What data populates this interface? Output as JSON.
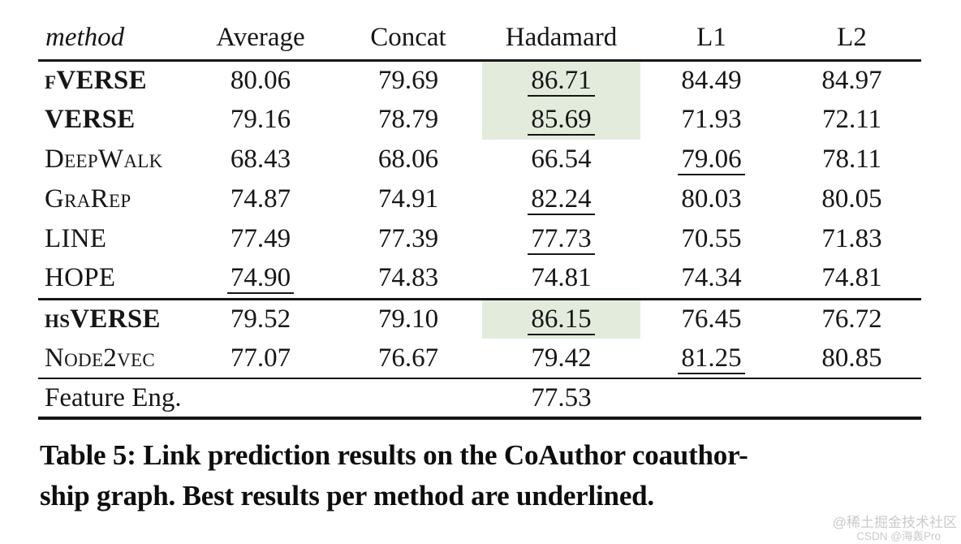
{
  "colors": {
    "highlight_green": "#e3ecdc",
    "text": "#161616",
    "rule": "#161616",
    "watermark_gray": "#c9cbc8"
  },
  "table": {
    "columns": [
      "method",
      "Average",
      "Concat",
      "Hadamard",
      "L1",
      "L2"
    ],
    "rows": [
      {
        "method": "fVERSE",
        "bold": true,
        "smallcaps": true,
        "group": 1,
        "cells": [
          {
            "value": "80.06"
          },
          {
            "value": "79.69"
          },
          {
            "value": "86.71",
            "underline": true,
            "highlight": true
          },
          {
            "value": "84.49"
          },
          {
            "value": "84.97"
          }
        ]
      },
      {
        "method": "VERSE",
        "bold": true,
        "smallcaps": true,
        "group": 1,
        "cells": [
          {
            "value": "79.16"
          },
          {
            "value": "78.79"
          },
          {
            "value": "85.69",
            "underline": true,
            "highlight": true
          },
          {
            "value": "71.93"
          },
          {
            "value": "72.11"
          }
        ]
      },
      {
        "method": "DeepWalk",
        "bold": false,
        "smallcaps": true,
        "group": 1,
        "cells": [
          {
            "value": "68.43"
          },
          {
            "value": "68.06"
          },
          {
            "value": "66.54"
          },
          {
            "value": "79.06",
            "underline": true
          },
          {
            "value": "78.11"
          }
        ]
      },
      {
        "method": "GraRep",
        "bold": false,
        "smallcaps": true,
        "group": 1,
        "cells": [
          {
            "value": "74.87"
          },
          {
            "value": "74.91"
          },
          {
            "value": "82.24",
            "underline": true
          },
          {
            "value": "80.03"
          },
          {
            "value": "80.05"
          }
        ]
      },
      {
        "method": "LINE",
        "bold": false,
        "smallcaps": true,
        "group": 1,
        "cells": [
          {
            "value": "77.49"
          },
          {
            "value": "77.39"
          },
          {
            "value": "77.73",
            "underline": true
          },
          {
            "value": "70.55"
          },
          {
            "value": "71.83"
          }
        ]
      },
      {
        "method": "HOPE",
        "bold": false,
        "smallcaps": true,
        "group": 1,
        "cells": [
          {
            "value": "74.90",
            "underline": true
          },
          {
            "value": "74.83"
          },
          {
            "value": "74.81"
          },
          {
            "value": "74.34"
          },
          {
            "value": "74.81"
          }
        ]
      },
      {
        "method": "hsVERSE",
        "bold": true,
        "smallcaps": true,
        "group": 2,
        "cells": [
          {
            "value": "79.52"
          },
          {
            "value": "79.10"
          },
          {
            "value": "86.15",
            "underline": true,
            "highlight": true
          },
          {
            "value": "76.45"
          },
          {
            "value": "76.72"
          }
        ]
      },
      {
        "method": "Node2vec",
        "bold": false,
        "smallcaps": true,
        "group": 2,
        "cells": [
          {
            "value": "77.07"
          },
          {
            "value": "76.67"
          },
          {
            "value": "79.42"
          },
          {
            "value": "81.25",
            "underline": true
          },
          {
            "value": "80.85"
          }
        ]
      },
      {
        "method": "Feature Eng.",
        "bold": false,
        "smallcaps": false,
        "group": 3,
        "cells": [
          {
            "value": ""
          },
          {
            "value": ""
          },
          {
            "value": "77.53"
          },
          {
            "value": ""
          },
          {
            "value": ""
          }
        ]
      }
    ]
  },
  "caption": {
    "line1": "Table 5: Link prediction results on the CoAuthor coauthor-",
    "line2": "ship graph. Best results per method are underlined."
  },
  "watermark": {
    "line1": "@稀土掘金技术社区",
    "line2": "CSDN @海轰Pro"
  }
}
